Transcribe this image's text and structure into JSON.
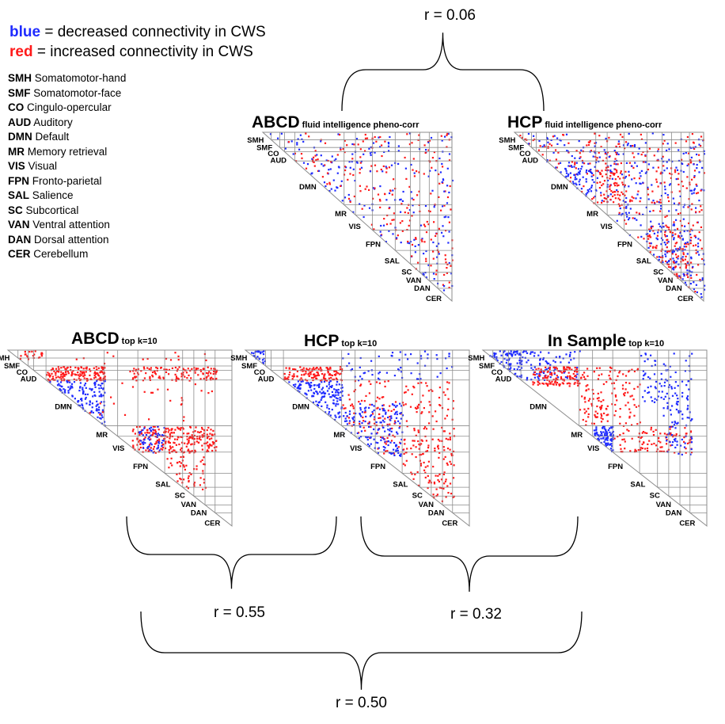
{
  "legend": {
    "blue_keyword": "blue",
    "blue_text": " = decreased connectivity in CWS",
    "red_keyword": "red",
    "red_text": " = increased connectivity in CWS",
    "blue_color": "#1f2bff",
    "red_color": "#ff1a1a"
  },
  "abbreviations": [
    {
      "abbr": "SMH",
      "name": "Somatomotor-hand"
    },
    {
      "abbr": "SMF",
      "name": "Somatomotor-face"
    },
    {
      "abbr": "CO",
      "name": "Cingulo-opercular"
    },
    {
      "abbr": "AUD",
      "name": "Auditory"
    },
    {
      "abbr": "DMN",
      "name": "Default"
    },
    {
      "abbr": "MR",
      "name": "Memory retrieval"
    },
    {
      "abbr": "VIS",
      "name": "Visual"
    },
    {
      "abbr": "FPN",
      "name": "Fronto-parietal"
    },
    {
      "abbr": "SAL",
      "name": "Salience"
    },
    {
      "abbr": "SC",
      "name": "Subcortical"
    },
    {
      "abbr": "VAN",
      "name": "Ventral attention"
    },
    {
      "abbr": "DAN",
      "name": "Dorsal attention"
    },
    {
      "abbr": "CER",
      "name": "Cerebellum"
    }
  ],
  "network_labels": [
    "SMH",
    "SMF",
    "CO",
    "AUD",
    "DMN",
    "MR",
    "VIS",
    "FPN",
    "SAL",
    "SC",
    "VAN",
    "DAN",
    "CER"
  ],
  "panels": [
    {
      "id": "abcd-pheno",
      "title": "ABCD",
      "subtitle": "fluid intelligence pheno-corr",
      "pattern": "sparse"
    },
    {
      "id": "hcp-pheno",
      "title": "HCP",
      "subtitle": "fluid intelligence pheno-corr",
      "pattern": "sparse-dense"
    },
    {
      "id": "abcd-topk",
      "title": "ABCD",
      "subtitle": "top k=10",
      "pattern": "abcd-topk"
    },
    {
      "id": "hcp-topk",
      "title": "HCP",
      "subtitle": "top k=10",
      "pattern": "hcp-topk"
    },
    {
      "id": "insample-topk",
      "title": "In Sample",
      "subtitle": "top k=10",
      "pattern": "insample-topk"
    }
  ],
  "correlations": {
    "pheno": "r = 0.06",
    "abcd_hcp": "r = 0.55",
    "hcp_insample": "r = 0.32",
    "abcd_insample": "r = 0.50"
  }
}
